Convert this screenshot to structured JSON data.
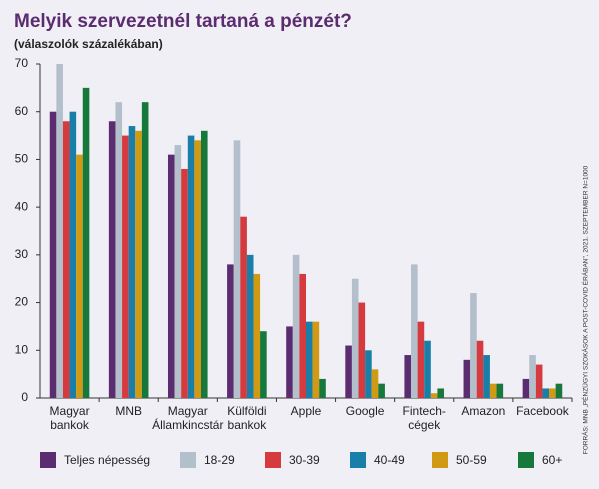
{
  "chart_data": {
    "type": "bar",
    "title": "Melyik szervezetnél tartaná a pénzét?",
    "subtitle": "(válaszolók százalékában)",
    "source": "FORRÁS: MNB „PÉNZÜGYI SZOKÁSOK A POST-COVID ÉRÁBAN\", 2021. SZEPTEMBER N=1000",
    "categories": [
      "Magyar\nbankok",
      "MNB",
      "Magyar\nÁllamkincstár",
      "Külföldi\nbankok",
      "Apple",
      "Google",
      "Fintech-\ncégek",
      "Amazon",
      "Facebook"
    ],
    "series": [
      {
        "name": "Teljes népesség",
        "color": "#5b2c6f",
        "values": [
          60,
          58,
          51,
          28,
          15,
          11,
          9,
          8,
          4
        ]
      },
      {
        "name": "18-29",
        "color": "#b3bfcb",
        "values": [
          70,
          62,
          53,
          54,
          30,
          25,
          28,
          22,
          9
        ]
      },
      {
        "name": "30-39",
        "color": "#d43a3e",
        "values": [
          58,
          55,
          48,
          38,
          26,
          20,
          16,
          12,
          7
        ]
      },
      {
        "name": "40-49",
        "color": "#1a7fa8",
        "values": [
          60,
          57,
          55,
          30,
          16,
          10,
          12,
          9,
          2
        ]
      },
      {
        "name": "50-59",
        "color": "#d19a14",
        "values": [
          51,
          56,
          54,
          26,
          16,
          6,
          1,
          3,
          2
        ]
      },
      {
        "name": "60+",
        "color": "#16783a",
        "values": [
          65,
          62,
          56,
          14,
          4,
          3,
          2,
          3,
          3
        ]
      }
    ],
    "ylim": [
      0,
      70
    ],
    "yticks": [
      0,
      10,
      20,
      30,
      40,
      50,
      60,
      70
    ],
    "grid": false,
    "legend": "bottom"
  }
}
